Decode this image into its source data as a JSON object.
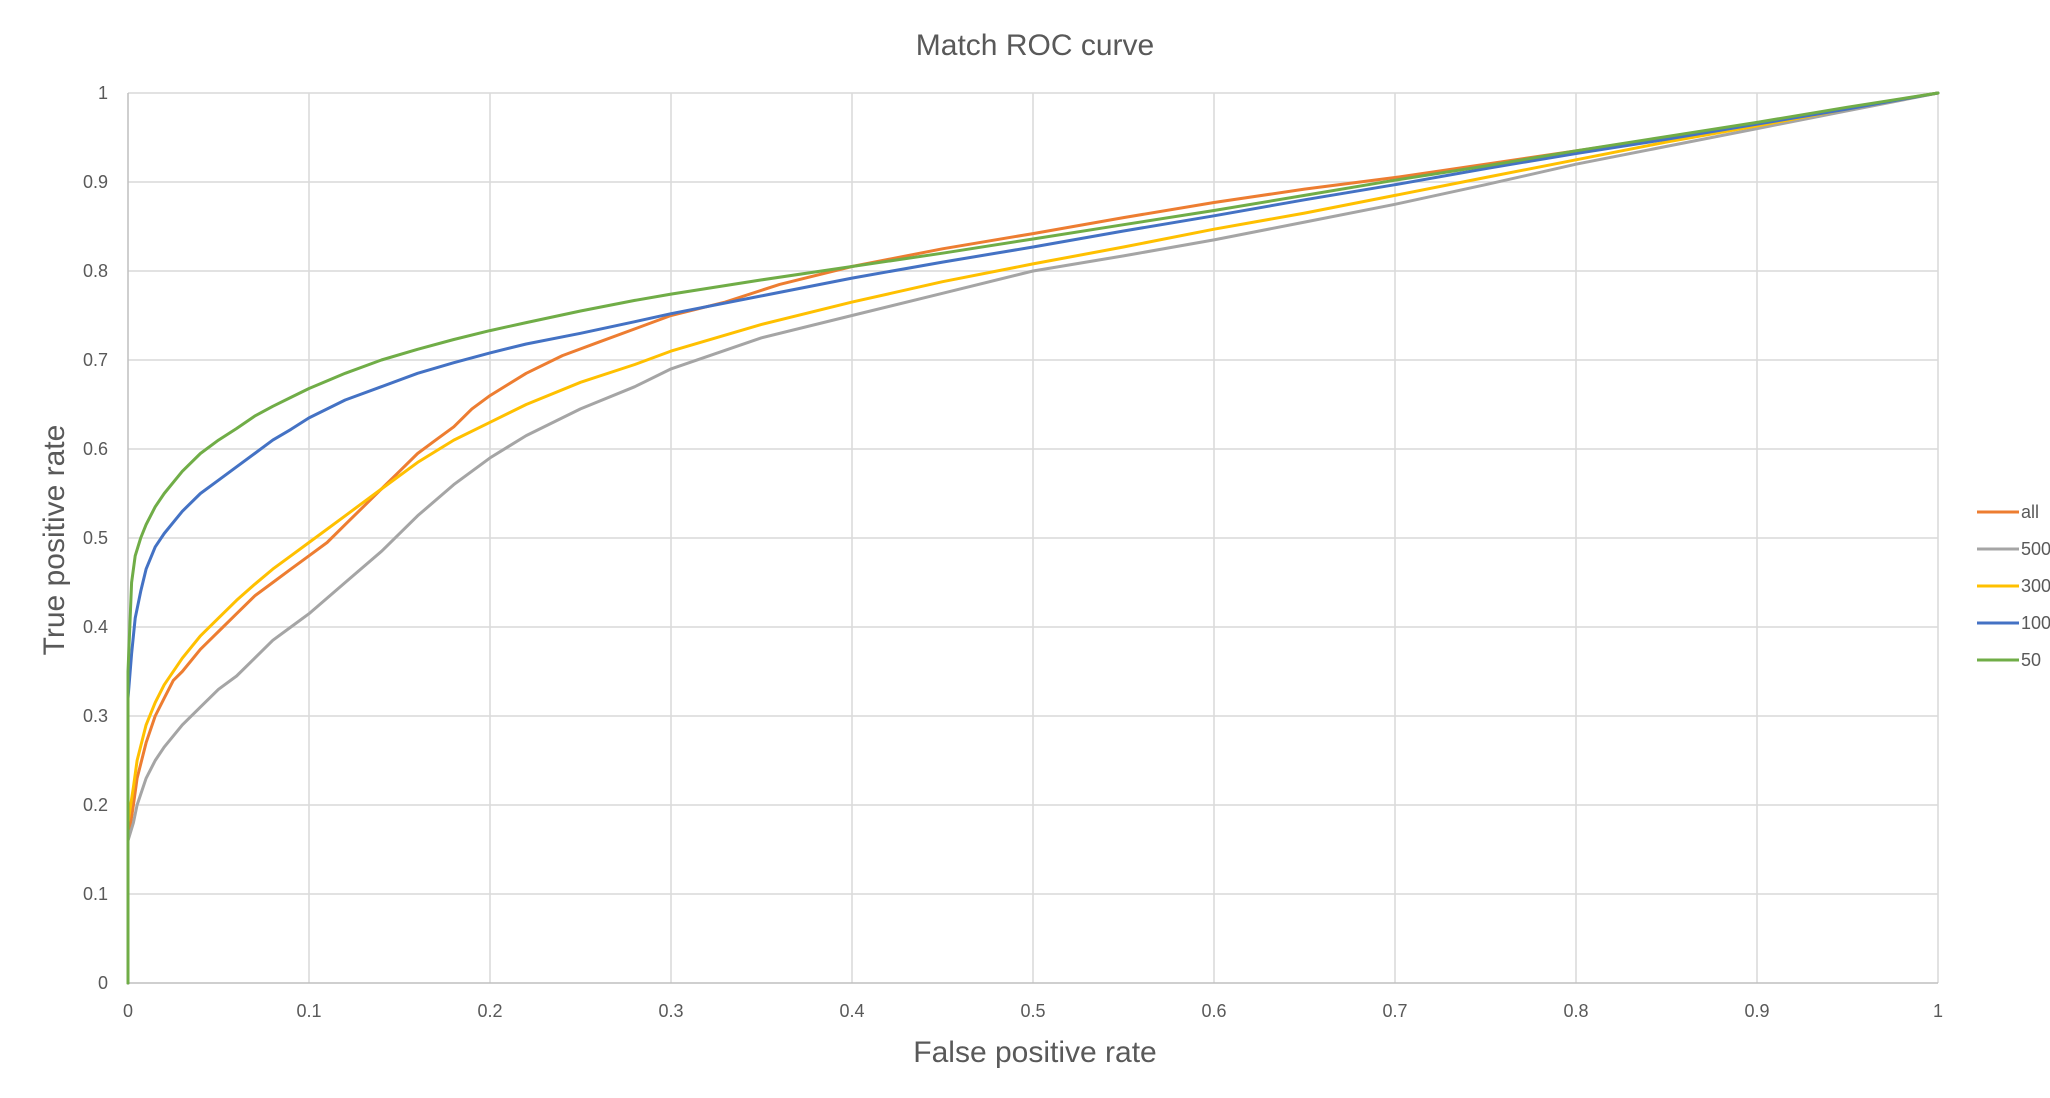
{
  "chart_data": {
    "type": "line",
    "title": "Match ROC curve",
    "xlabel": "False positive rate",
    "ylabel": "True positive rate",
    "xlim": [
      0,
      1
    ],
    "ylim": [
      0,
      1
    ],
    "xticks": [
      "0",
      "0.1",
      "0.2",
      "0.3",
      "0.4",
      "0.5",
      "0.6",
      "0.7",
      "0.8",
      "0.9",
      "1"
    ],
    "yticks": [
      "0",
      "0.1",
      "0.2",
      "0.3",
      "0.4",
      "0.5",
      "0.6",
      "0.7",
      "0.8",
      "0.9",
      "1"
    ],
    "grid": true,
    "legend_position": "right",
    "series": [
      {
        "name": "all",
        "color": "#ed7d31",
        "points": [
          [
            0,
            0
          ],
          [
            0,
            0.16
          ],
          [
            0.003,
            0.2
          ],
          [
            0.005,
            0.23
          ],
          [
            0.01,
            0.27
          ],
          [
            0.015,
            0.3
          ],
          [
            0.02,
            0.32
          ],
          [
            0.025,
            0.34
          ],
          [
            0.03,
            0.35
          ],
          [
            0.04,
            0.375
          ],
          [
            0.05,
            0.395
          ],
          [
            0.06,
            0.415
          ],
          [
            0.07,
            0.435
          ],
          [
            0.08,
            0.45
          ],
          [
            0.09,
            0.465
          ],
          [
            0.1,
            0.48
          ],
          [
            0.11,
            0.495
          ],
          [
            0.12,
            0.515
          ],
          [
            0.13,
            0.535
          ],
          [
            0.14,
            0.555
          ],
          [
            0.15,
            0.575
          ],
          [
            0.16,
            0.595
          ],
          [
            0.17,
            0.61
          ],
          [
            0.18,
            0.625
          ],
          [
            0.19,
            0.645
          ],
          [
            0.2,
            0.66
          ],
          [
            0.22,
            0.685
          ],
          [
            0.24,
            0.705
          ],
          [
            0.26,
            0.72
          ],
          [
            0.28,
            0.735
          ],
          [
            0.3,
            0.75
          ],
          [
            0.33,
            0.765
          ],
          [
            0.36,
            0.785
          ],
          [
            0.4,
            0.805
          ],
          [
            0.45,
            0.825
          ],
          [
            0.5,
            0.842
          ],
          [
            0.55,
            0.86
          ],
          [
            0.6,
            0.877
          ],
          [
            0.65,
            0.892
          ],
          [
            0.7,
            0.905
          ],
          [
            0.75,
            0.92
          ],
          [
            0.8,
            0.935
          ],
          [
            0.85,
            0.95
          ],
          [
            0.9,
            0.965
          ],
          [
            0.95,
            0.983
          ],
          [
            1,
            1
          ]
        ]
      },
      {
        "name": "500",
        "color": "#a5a5a5",
        "points": [
          [
            0,
            0
          ],
          [
            0,
            0.16
          ],
          [
            0.003,
            0.18
          ],
          [
            0.005,
            0.2
          ],
          [
            0.01,
            0.23
          ],
          [
            0.015,
            0.25
          ],
          [
            0.02,
            0.265
          ],
          [
            0.03,
            0.29
          ],
          [
            0.04,
            0.31
          ],
          [
            0.05,
            0.33
          ],
          [
            0.06,
            0.345
          ],
          [
            0.07,
            0.365
          ],
          [
            0.08,
            0.385
          ],
          [
            0.09,
            0.4
          ],
          [
            0.1,
            0.415
          ],
          [
            0.12,
            0.45
          ],
          [
            0.14,
            0.485
          ],
          [
            0.16,
            0.525
          ],
          [
            0.18,
            0.56
          ],
          [
            0.2,
            0.59
          ],
          [
            0.22,
            0.615
          ],
          [
            0.25,
            0.645
          ],
          [
            0.28,
            0.67
          ],
          [
            0.3,
            0.69
          ],
          [
            0.35,
            0.725
          ],
          [
            0.4,
            0.75
          ],
          [
            0.45,
            0.775
          ],
          [
            0.5,
            0.8
          ],
          [
            0.55,
            0.817
          ],
          [
            0.6,
            0.835
          ],
          [
            0.65,
            0.855
          ],
          [
            0.7,
            0.875
          ],
          [
            0.75,
            0.897
          ],
          [
            0.8,
            0.92
          ],
          [
            0.85,
            0.94
          ],
          [
            0.9,
            0.96
          ],
          [
            0.95,
            0.98
          ],
          [
            1,
            1
          ]
        ]
      },
      {
        "name": "300",
        "color": "#ffc000",
        "points": [
          [
            0,
            0
          ],
          [
            0,
            0.18
          ],
          [
            0.003,
            0.22
          ],
          [
            0.005,
            0.25
          ],
          [
            0.01,
            0.29
          ],
          [
            0.015,
            0.315
          ],
          [
            0.02,
            0.335
          ],
          [
            0.03,
            0.365
          ],
          [
            0.04,
            0.39
          ],
          [
            0.05,
            0.41
          ],
          [
            0.06,
            0.43
          ],
          [
            0.07,
            0.448
          ],
          [
            0.08,
            0.465
          ],
          [
            0.09,
            0.48
          ],
          [
            0.1,
            0.495
          ],
          [
            0.12,
            0.525
          ],
          [
            0.14,
            0.555
          ],
          [
            0.16,
            0.585
          ],
          [
            0.18,
            0.61
          ],
          [
            0.2,
            0.63
          ],
          [
            0.22,
            0.65
          ],
          [
            0.25,
            0.675
          ],
          [
            0.28,
            0.695
          ],
          [
            0.3,
            0.71
          ],
          [
            0.35,
            0.74
          ],
          [
            0.4,
            0.765
          ],
          [
            0.45,
            0.788
          ],
          [
            0.5,
            0.808
          ],
          [
            0.55,
            0.827
          ],
          [
            0.6,
            0.847
          ],
          [
            0.65,
            0.865
          ],
          [
            0.7,
            0.885
          ],
          [
            0.75,
            0.905
          ],
          [
            0.8,
            0.925
          ],
          [
            0.85,
            0.945
          ],
          [
            0.9,
            0.963
          ],
          [
            0.95,
            0.982
          ],
          [
            1,
            1
          ]
        ]
      },
      {
        "name": "100",
        "color": "#4472c4",
        "points": [
          [
            0,
            0
          ],
          [
            0,
            0.32
          ],
          [
            0.002,
            0.37
          ],
          [
            0.004,
            0.41
          ],
          [
            0.007,
            0.44
          ],
          [
            0.01,
            0.465
          ],
          [
            0.015,
            0.49
          ],
          [
            0.02,
            0.505
          ],
          [
            0.03,
            0.53
          ],
          [
            0.04,
            0.55
          ],
          [
            0.05,
            0.565
          ],
          [
            0.06,
            0.58
          ],
          [
            0.07,
            0.595
          ],
          [
            0.08,
            0.61
          ],
          [
            0.09,
            0.622
          ],
          [
            0.1,
            0.635
          ],
          [
            0.12,
            0.655
          ],
          [
            0.14,
            0.67
          ],
          [
            0.16,
            0.685
          ],
          [
            0.18,
            0.697
          ],
          [
            0.2,
            0.708
          ],
          [
            0.22,
            0.718
          ],
          [
            0.25,
            0.73
          ],
          [
            0.28,
            0.743
          ],
          [
            0.3,
            0.752
          ],
          [
            0.35,
            0.772
          ],
          [
            0.4,
            0.792
          ],
          [
            0.45,
            0.81
          ],
          [
            0.5,
            0.827
          ],
          [
            0.55,
            0.845
          ],
          [
            0.6,
            0.862
          ],
          [
            0.65,
            0.88
          ],
          [
            0.7,
            0.897
          ],
          [
            0.75,
            0.915
          ],
          [
            0.8,
            0.932
          ],
          [
            0.85,
            0.948
          ],
          [
            0.9,
            0.965
          ],
          [
            0.95,
            0.982
          ],
          [
            1,
            1
          ]
        ]
      },
      {
        "name": "50",
        "color": "#70ad47",
        "points": [
          [
            0,
            0
          ],
          [
            0,
            0.35
          ],
          [
            0.001,
            0.4
          ],
          [
            0.002,
            0.45
          ],
          [
            0.004,
            0.48
          ],
          [
            0.007,
            0.5
          ],
          [
            0.01,
            0.515
          ],
          [
            0.015,
            0.535
          ],
          [
            0.02,
            0.55
          ],
          [
            0.03,
            0.575
          ],
          [
            0.04,
            0.595
          ],
          [
            0.05,
            0.61
          ],
          [
            0.06,
            0.623
          ],
          [
            0.07,
            0.637
          ],
          [
            0.08,
            0.648
          ],
          [
            0.09,
            0.658
          ],
          [
            0.1,
            0.668
          ],
          [
            0.12,
            0.685
          ],
          [
            0.14,
            0.7
          ],
          [
            0.16,
            0.712
          ],
          [
            0.18,
            0.723
          ],
          [
            0.2,
            0.733
          ],
          [
            0.22,
            0.742
          ],
          [
            0.25,
            0.755
          ],
          [
            0.28,
            0.767
          ],
          [
            0.3,
            0.774
          ],
          [
            0.35,
            0.79
          ],
          [
            0.4,
            0.805
          ],
          [
            0.45,
            0.82
          ],
          [
            0.5,
            0.836
          ],
          [
            0.55,
            0.852
          ],
          [
            0.6,
            0.868
          ],
          [
            0.65,
            0.885
          ],
          [
            0.7,
            0.902
          ],
          [
            0.75,
            0.918
          ],
          [
            0.8,
            0.935
          ],
          [
            0.85,
            0.951
          ],
          [
            0.9,
            0.967
          ],
          [
            0.95,
            0.984
          ],
          [
            1,
            1
          ]
        ]
      }
    ]
  }
}
